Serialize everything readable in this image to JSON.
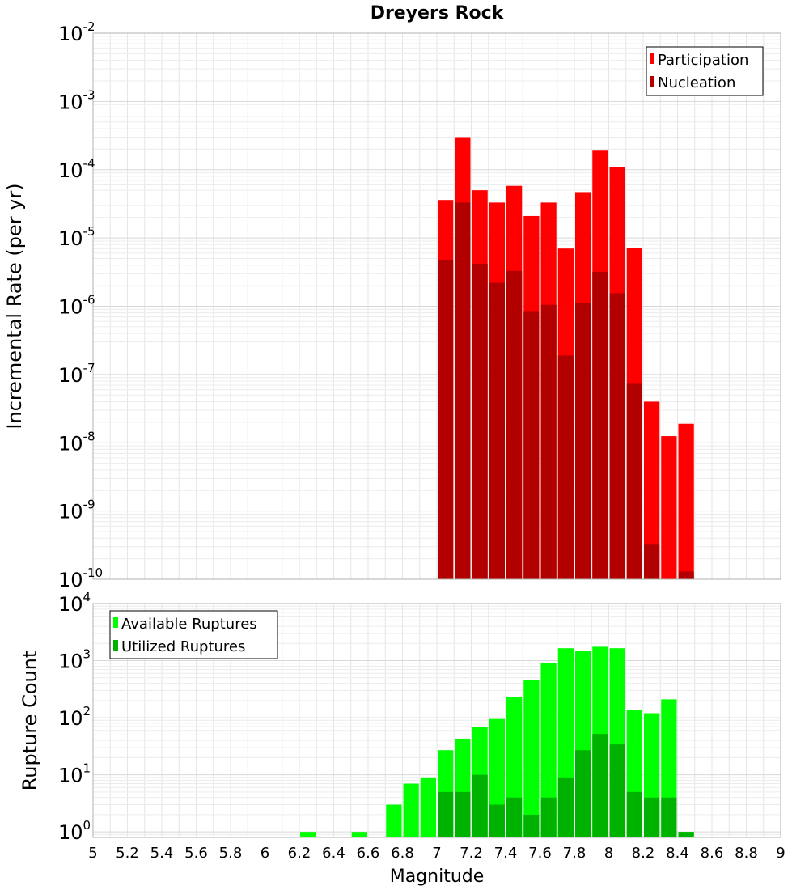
{
  "chart_data": [
    {
      "type": "bar",
      "title": "Dreyers Rock",
      "xlabel": "",
      "ylabel": "Incremental Rate (per yr)",
      "yscale": "log",
      "ylim": [
        1e-10,
        0.01
      ],
      "xlim": [
        5,
        9
      ],
      "grid": true,
      "legend_position": "top-right",
      "x": [
        7.05,
        7.15,
        7.25,
        7.35,
        7.45,
        7.55,
        7.65,
        7.75,
        7.85,
        7.95,
        8.05,
        8.15,
        8.25,
        8.35,
        8.45
      ],
      "series": [
        {
          "name": "Participation",
          "color": "#ff0000",
          "values": [
            3.6e-05,
            0.0003,
            5e-05,
            3.3e-05,
            5.8e-05,
            2.1e-05,
            3.3e-05,
            7e-06,
            4.7e-05,
            0.00019,
            0.000108,
            7.2e-06,
            4e-08,
            1.25e-08,
            1.9e-08
          ]
        },
        {
          "name": "Nucleation",
          "color": "#b20000",
          "values": [
            4.8e-06,
            3.3e-05,
            4.2e-06,
            2.2e-06,
            3.3e-06,
            8.5e-07,
            1.05e-06,
            1.9e-07,
            1.1e-06,
            3.2e-06,
            1.55e-06,
            7.5e-08,
            3.3e-10,
            null,
            1.3e-10
          ]
        }
      ]
    },
    {
      "type": "bar",
      "title": "",
      "xlabel": "Magnitude",
      "ylabel": "Rupture Count",
      "yscale": "log",
      "ylim": [
        0.8,
        10000.0
      ],
      "xlim": [
        5,
        9
      ],
      "grid": true,
      "legend_position": "top-left",
      "x_ticks": [
        "5",
        "5.2",
        "5.4",
        "5.6",
        "5.8",
        "6",
        "6.2",
        "6.4",
        "6.6",
        "6.8",
        "7",
        "7.2",
        "7.4",
        "7.6",
        "7.8",
        "8",
        "8.2",
        "8.4",
        "8.6",
        "8.8",
        "9"
      ],
      "x": [
        6.25,
        6.55,
        6.75,
        6.85,
        6.95,
        7.05,
        7.15,
        7.25,
        7.35,
        7.45,
        7.55,
        7.65,
        7.75,
        7.85,
        7.95,
        8.05,
        8.15,
        8.25,
        8.35,
        8.45
      ],
      "series": [
        {
          "name": "Available Ruptures",
          "color": "#00ff00",
          "values": [
            1,
            1,
            3,
            7,
            9,
            27,
            43,
            70,
            95,
            230,
            450,
            920,
            1650,
            1500,
            1750,
            1650,
            135,
            120,
            210,
            1
          ]
        },
        {
          "name": "Utilized Ruptures",
          "color": "#00b200",
          "values": [
            null,
            null,
            null,
            null,
            null,
            5,
            5,
            10,
            3,
            4,
            2,
            4,
            9,
            27,
            52,
            34,
            5,
            4,
            4,
            1
          ]
        }
      ]
    }
  ]
}
